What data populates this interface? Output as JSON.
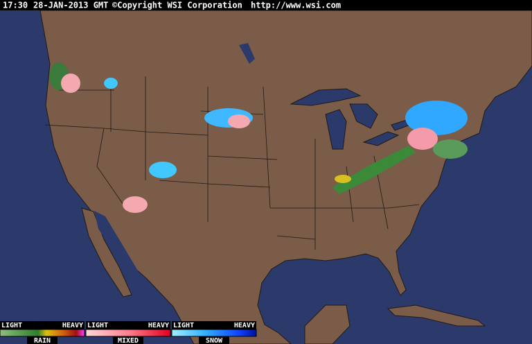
{
  "header": {
    "time": "17:30",
    "date": "28-JAN-2013 GMT",
    "copyright": "©Copyright WSI Corporation",
    "url": "http://www.wsi.com"
  },
  "legend": [
    {
      "light": "LIGHT",
      "heavy": "HEAVY",
      "label": "RAIN"
    },
    {
      "light": "LIGHT",
      "heavy": "HEAVY",
      "label": "MIXED"
    },
    {
      "light": "LIGHT",
      "heavy": "HEAVY",
      "label": "SNOW"
    }
  ]
}
